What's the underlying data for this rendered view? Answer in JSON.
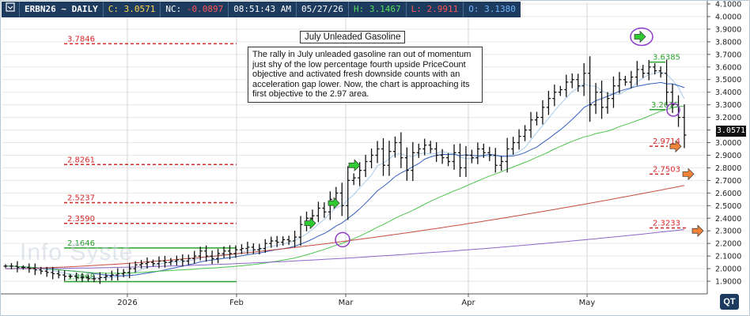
{
  "header": {
    "symbol": "ERBN26 ~ DAILY",
    "close": "C: 3.0571",
    "net_change_label": "NC:",
    "net_change": "-0.0897",
    "time": "08:51:43 AM",
    "date": "05/27/26",
    "high": "H: 3.1467",
    "low": "L: 2.9911",
    "open": "O: 3.1380"
  },
  "colors": {
    "header_bg": "#1d3a5f",
    "high": "#55e055",
    "low": "#ff5555",
    "open": "#6fb6ff",
    "close": "#ffd84a",
    "net_change": "#ff5555",
    "upside_level": "#2ca02c",
    "downside_level": "#d62728",
    "bars": "#111111"
  },
  "chart_title": "July Unleaded Gasoline",
  "annotation": "The rally in July unleaded gasoline ran out of momentum just shy of the low percentage fourth upside PriceCount objective and activated fresh downside counts with an acceleration gap lower. Now, the chart is approaching its first objective to the 2.97 area.",
  "last_price_tag": "3.0571",
  "watermark": "Info Syste",
  "logo_text": "QT",
  "chart_data": {
    "type": "ohlc",
    "ylim": [
      1.8,
      4.1
    ],
    "y_ticks": [
      "1.9000",
      "2.0000",
      "2.1000",
      "2.2000",
      "2.3000",
      "2.4000",
      "2.5000",
      "2.6000",
      "2.7000",
      "2.8000",
      "2.9000",
      "3.0000",
      "3.1000",
      "3.2000",
      "3.3000",
      "3.4000",
      "3.5000",
      "3.6000",
      "3.7000",
      "3.8000",
      "3.9000",
      "4.0000",
      "4.1000"
    ],
    "x_labels": [
      "2026",
      "Feb",
      "Mar",
      "Apr",
      "May"
    ],
    "grid": true,
    "closes": [
      2.02,
      2.02,
      2.01,
      2.01,
      2.0,
      1.99,
      1.98,
      1.97,
      1.96,
      1.95,
      1.94,
      1.94,
      1.93,
      1.93,
      1.92,
      1.92,
      1.93,
      1.94,
      1.95,
      1.96,
      1.97,
      2.0,
      2.03,
      2.04,
      2.05,
      2.04,
      2.06,
      2.05,
      2.06,
      2.07,
      2.06,
      2.08,
      2.1,
      2.14,
      2.1,
      2.08,
      2.12,
      2.14,
      2.12,
      2.15,
      2.16,
      2.17,
      2.15,
      2.16,
      2.2,
      2.22,
      2.21,
      2.23,
      2.22,
      2.25,
      2.35,
      2.4,
      2.42,
      2.48,
      2.45,
      2.55,
      2.6,
      2.5,
      2.7,
      2.72,
      2.78,
      2.85,
      2.9,
      2.95,
      2.82,
      2.93,
      3.0,
      2.88,
      2.78,
      2.92,
      2.95,
      2.98,
      2.95,
      2.9,
      2.88,
      2.85,
      2.92,
      2.8,
      2.9,
      2.88,
      2.95,
      2.92,
      2.9,
      2.82,
      2.85,
      2.95,
      3.0,
      3.05,
      3.1,
      3.18,
      3.2,
      3.28,
      3.35,
      3.4,
      3.42,
      3.48,
      3.5,
      3.45,
      3.55,
      3.3,
      3.4,
      3.28,
      3.35,
      3.45,
      3.5,
      3.48,
      3.52,
      3.58,
      3.55,
      3.6,
      3.57,
      3.55,
      3.4,
      3.3,
      3.2,
      3.06
    ],
    "series": [
      {
        "name": "",
        "kind": "moving-average",
        "color": "#1f4fb5"
      },
      {
        "name": "",
        "kind": "moving-average",
        "color": "#3cbf3c"
      },
      {
        "name": "",
        "kind": "moving-average",
        "color": "#c0392b"
      },
      {
        "name": "",
        "kind": "moving-average",
        "color": "#7e57c2"
      }
    ],
    "levels": [
      {
        "value": 3.7846,
        "label": "3.7846",
        "type": "downside"
      },
      {
        "value": 2.8261,
        "label": "2.8261",
        "type": "downside"
      },
      {
        "value": 2.5237,
        "label": "2.5237",
        "type": "downside"
      },
      {
        "value": 2.359,
        "label": "2.3590",
        "type": "downside"
      },
      {
        "value": 2.1646,
        "label": "2.1646",
        "type": "upside"
      },
      {
        "value": 1.8968,
        "label": "1.8968",
        "type": "upside"
      },
      {
        "value": 3.6385,
        "label": "3.6385",
        "type": "upside"
      },
      {
        "value": 3.2615,
        "label": "3.2615",
        "type": "upside"
      },
      {
        "value": 2.9714,
        "label": "2.9714",
        "type": "downside"
      },
      {
        "value": 2.7503,
        "label": "2.7503",
        "type": "downside"
      },
      {
        "value": 2.3233,
        "label": "2.3233",
        "type": "downside"
      }
    ]
  }
}
